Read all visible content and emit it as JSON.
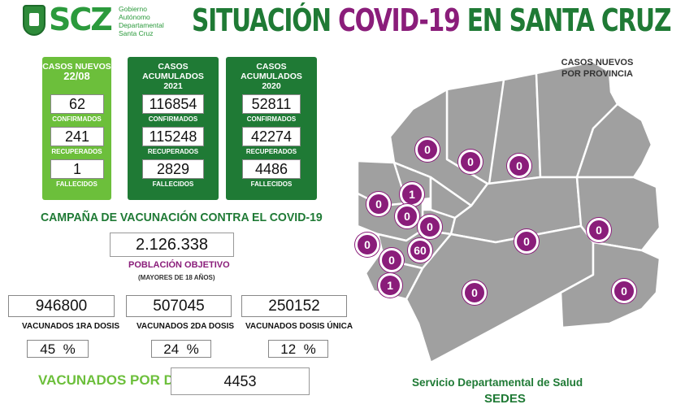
{
  "header": {
    "logo_text": "SCZ",
    "logo_subtitle": [
      "Gobierno",
      "Autónomo",
      "Departamental",
      "Santa Cruz"
    ],
    "title_part1": "SITUACIÓN ",
    "title_part2": "COVID-19",
    "title_part3": " EN SANTA CRUZ"
  },
  "panels": {
    "new_cases": {
      "title_line1": "CASOS NUEVOS",
      "title_line2": "22/08",
      "confirmed": "62",
      "confirmed_label": "CONFIRMADOS",
      "recovered": "241",
      "recovered_label": "RECUPERADOS",
      "deaths": "1",
      "deaths_label": "FALLECIDOS"
    },
    "accum_2021": {
      "title_line1": "CASOS ACUMULADOS",
      "title_line2": "2021",
      "confirmed": "116854",
      "confirmed_label": "CONFIRMADOS",
      "recovered": "115248",
      "recovered_label": "RECUPERADOS",
      "deaths": "2829",
      "deaths_label": "FALLECIDOS"
    },
    "accum_2020": {
      "title_line1": "CASOS ACUMULADOS",
      "title_line2": "2020",
      "confirmed": "52811",
      "confirmed_label": "CONFIRMADOS",
      "recovered": "42274",
      "recovered_label": "RECUPERADOS",
      "deaths": "4486",
      "deaths_label": "FALLECIDOS"
    }
  },
  "vaccination": {
    "campaign_title": "CAMPAÑA DE VACUNACIÓN CONTRA EL COVID-19",
    "target_population": "2.126.338",
    "target_label": "POBLACIÓN OBJETIVO",
    "target_sublabel": "(MAYORES DE 18 AÑOS)",
    "dose1": {
      "value": "946800",
      "label": "VACUNADOS 1RA DOSIS",
      "pct": "45",
      "pct_sign": "%"
    },
    "dose2": {
      "value": "507045",
      "label": "VACUNADOS 2DA DOSIS",
      "pct": "24",
      "pct_sign": "%"
    },
    "single": {
      "value": "250152",
      "label": "VACUNADOS DOSIS ÚNICA",
      "pct": "12",
      "pct_sign": "%"
    },
    "per_day_label": "VACUNADOS POR DÍA",
    "per_day_value": "4453"
  },
  "map": {
    "title_line1": "CASOS NUEVOS",
    "title_line2": "POR PROVINCIA",
    "markers": [
      "0",
      "0",
      "0",
      "1",
      "0",
      "0",
      "0",
      "0",
      "0",
      "0",
      "60",
      "0",
      "0",
      "1",
      "0",
      "0"
    ]
  },
  "footer": {
    "line1": "Servicio Departamental de Salud",
    "line2": "SEDES"
  },
  "colors": {
    "dark_green": "#1f7a35",
    "light_green": "#6cbf3b",
    "purple": "#8a1d7a",
    "map_gray": "#9d9d9d"
  }
}
